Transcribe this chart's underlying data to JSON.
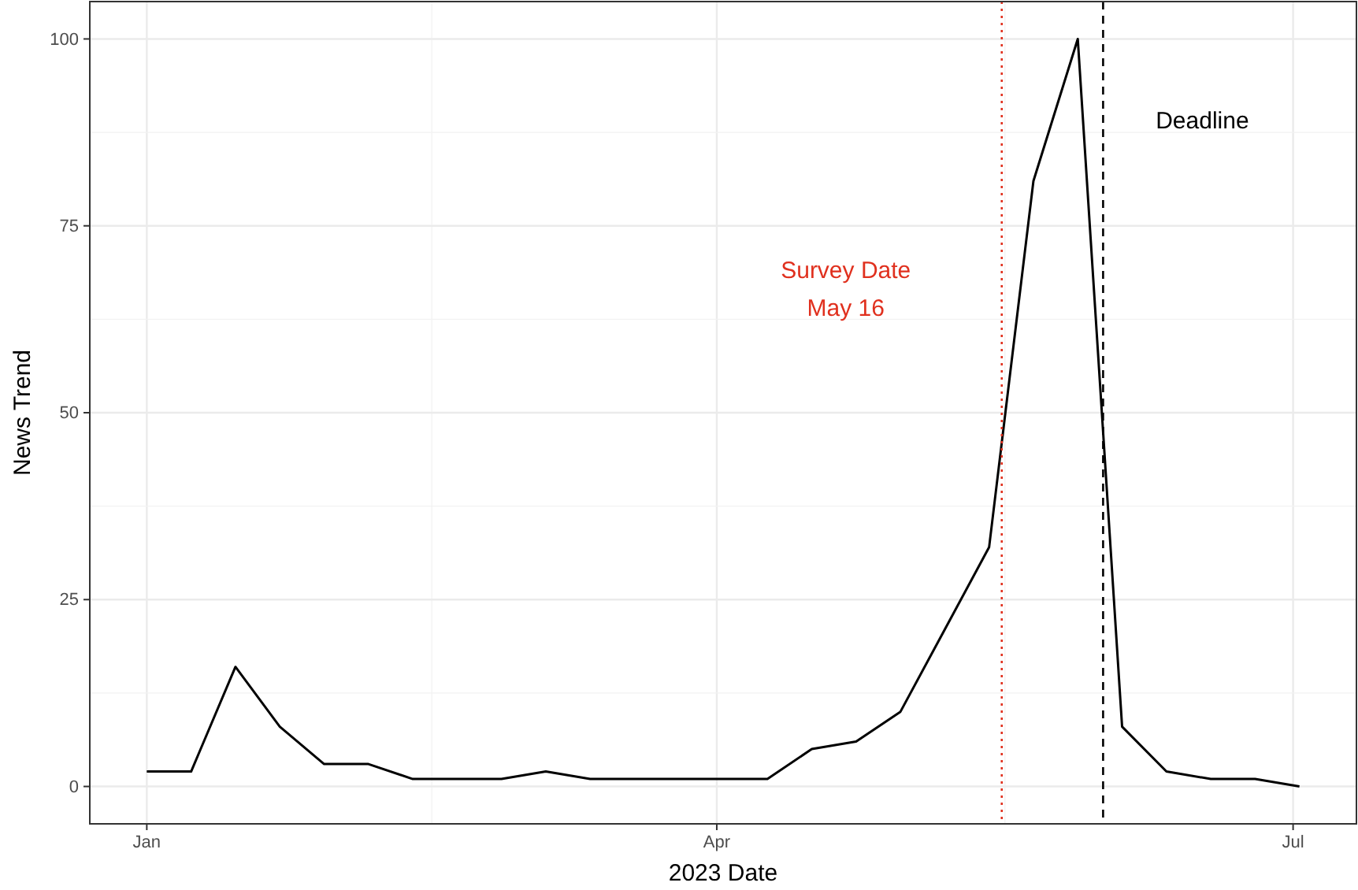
{
  "chart_data": {
    "type": "line",
    "xlabel": "2023 Date",
    "ylabel": "News Trend",
    "x": [
      "2023-01-01",
      "2023-01-08",
      "2023-01-15",
      "2023-01-22",
      "2023-01-29",
      "2023-02-05",
      "2023-02-12",
      "2023-02-19",
      "2023-02-26",
      "2023-03-05",
      "2023-03-12",
      "2023-03-19",
      "2023-03-26",
      "2023-04-02",
      "2023-04-09",
      "2023-04-16",
      "2023-04-23",
      "2023-04-30",
      "2023-05-07",
      "2023-05-14",
      "2023-05-21",
      "2023-05-28",
      "2023-06-04",
      "2023-06-11",
      "2023-06-18",
      "2023-06-25",
      "2023-07-02"
    ],
    "series": [
      {
        "color": "#000000",
        "values": [
          2,
          2,
          16,
          8,
          3,
          3,
          1,
          1,
          1,
          2,
          1,
          1,
          1,
          1,
          1,
          5,
          6,
          10,
          21,
          32,
          81,
          100,
          8,
          2,
          1,
          1,
          0
        ]
      }
    ],
    "xlim": [
      "2022-12-23",
      "2023-07-11"
    ],
    "xticks": [
      {
        "value": "2023-01-01",
        "label": "Jan"
      },
      {
        "value": "2023-04-01",
        "label": "Apr"
      },
      {
        "value": "2023-07-01",
        "label": "Jul"
      }
    ],
    "ylim": [
      -5,
      105
    ],
    "yticks": [
      0,
      25,
      50,
      75,
      100
    ],
    "grid": true,
    "marker": "none",
    "line_style": "solid",
    "ref_lines": [
      {
        "axis": "x",
        "value": "2023-05-16",
        "label": "Survey Date\nMay 16",
        "color": "#e0301e",
        "line_style": "dotted"
      },
      {
        "axis": "x",
        "value": "2023-06-01",
        "label": "Deadline",
        "color": "#000000",
        "line_style": "dashed"
      }
    ]
  }
}
